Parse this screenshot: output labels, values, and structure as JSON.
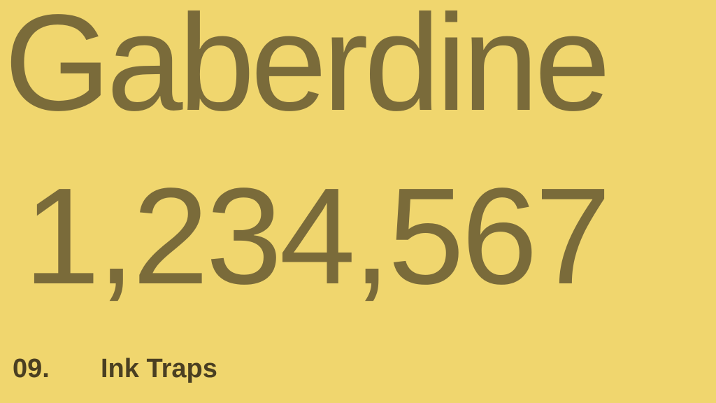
{
  "specimen": {
    "word": "Gaberdine",
    "numbers": "1,234,567"
  },
  "caption": {
    "number": "09.",
    "title": "Ink Traps"
  },
  "colors": {
    "background": "#F0D66E",
    "ink": "#7A6B3A",
    "caption_ink": "#4A3F22"
  }
}
